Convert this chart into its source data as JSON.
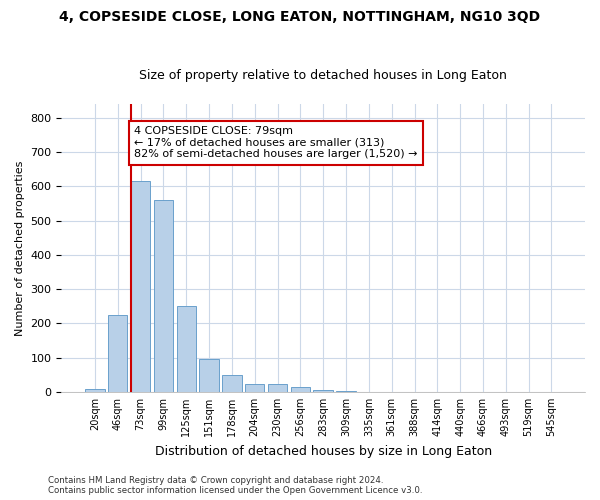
{
  "title": "4, COPSESIDE CLOSE, LONG EATON, NOTTINGHAM, NG10 3QD",
  "subtitle": "Size of property relative to detached houses in Long Eaton",
  "xlabel": "Distribution of detached houses by size in Long Eaton",
  "ylabel": "Number of detached properties",
  "bar_labels": [
    "20sqm",
    "46sqm",
    "73sqm",
    "99sqm",
    "125sqm",
    "151sqm",
    "178sqm",
    "204sqm",
    "230sqm",
    "256sqm",
    "283sqm",
    "309sqm",
    "335sqm",
    "361sqm",
    "388sqm",
    "414sqm",
    "440sqm",
    "466sqm",
    "493sqm",
    "519sqm",
    "545sqm"
  ],
  "bar_values": [
    10,
    225,
    615,
    560,
    250,
    95,
    48,
    22,
    22,
    14,
    5,
    2,
    0,
    0,
    0,
    0,
    0,
    0,
    0,
    0,
    0
  ],
  "bar_color": "#b8d0e8",
  "bar_edge_color": "#6aa0cc",
  "bar_width": 0.85,
  "vline_x_idx": 2,
  "vline_color": "#cc0000",
  "annotation_text": "4 COPSESIDE CLOSE: 79sqm\n← 17% of detached houses are smaller (313)\n82% of semi-detached houses are larger (1,520) →",
  "annotation_box_color": "#ffffff",
  "annotation_box_edge": "#cc0000",
  "ylim": [
    0,
    840
  ],
  "yticks": [
    0,
    100,
    200,
    300,
    400,
    500,
    600,
    700,
    800
  ],
  "bg_color": "#ffffff",
  "grid_color": "#ccd8e8",
  "footer_line1": "Contains HM Land Registry data © Crown copyright and database right 2024.",
  "footer_line2": "Contains public sector information licensed under the Open Government Licence v3.0.",
  "title_fontsize": 10,
  "subtitle_fontsize": 9,
  "annotation_fontsize": 8
}
